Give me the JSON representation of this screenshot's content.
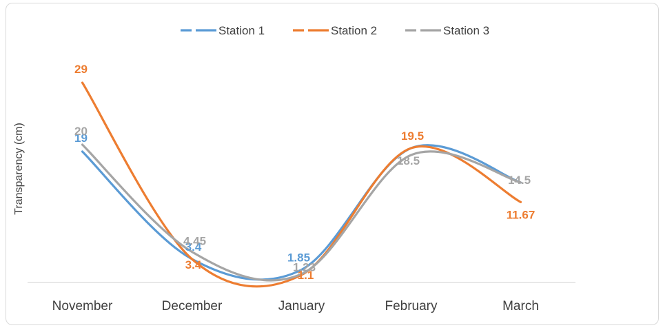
{
  "chart_data": {
    "type": "line",
    "smooth": true,
    "categories": [
      "November",
      "December",
      "January",
      "February",
      "March"
    ],
    "ylabel": "Transparency (cm)",
    "ylim": [
      0,
      30
    ],
    "grid": false,
    "legend_position": "top",
    "series": [
      {
        "name": "Station 1",
        "color": "#5b9bd5",
        "values": [
          19,
          3.4,
          1.85,
          19.5,
          14.5
        ],
        "labels": [
          "19",
          "3.4",
          "1.85",
          "",
          ""
        ]
      },
      {
        "name": "Station 2",
        "color": "#ed7d31",
        "values": [
          29,
          3.4,
          1.1,
          19.5,
          11.67
        ],
        "labels": [
          "29",
          "3.4",
          "1.1",
          "19.5",
          "11.67"
        ]
      },
      {
        "name": "Station 3",
        "color": "#a5a5a5",
        "values": [
          20,
          4.45,
          1.23,
          18.5,
          14.5
        ],
        "labels": [
          "20",
          "4.45",
          "1.23",
          "18.5",
          "14.5"
        ]
      }
    ]
  }
}
